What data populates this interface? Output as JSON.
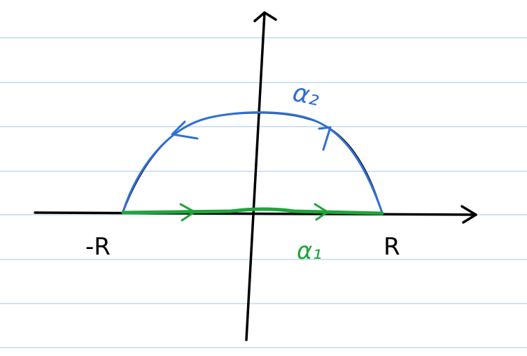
{
  "labels": {
    "left_point": "-R",
    "right_point": "R",
    "segment": "α₁",
    "arc": "α₂"
  },
  "colors": {
    "ruled_lines": "#cfe3f3",
    "axes": "#000000",
    "arc": "#2f6fd6",
    "segment": "#1fa53a",
    "background": "#ffffff"
  }
}
